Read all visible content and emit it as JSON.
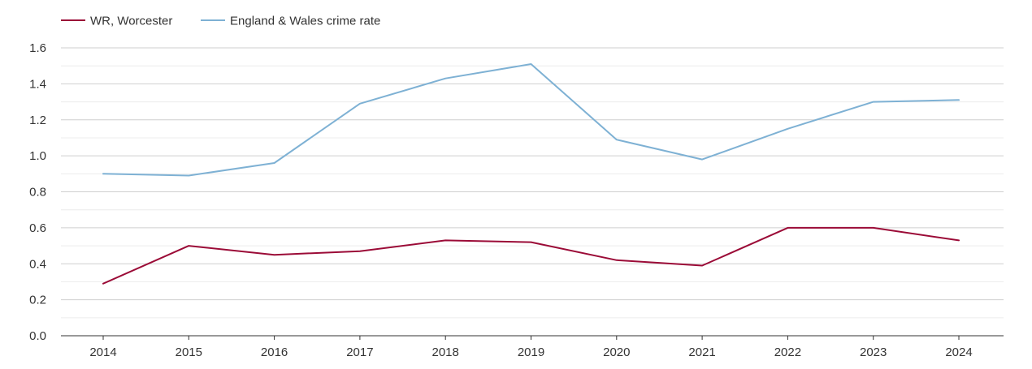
{
  "chart_data": {
    "type": "line",
    "title": "",
    "xlabel": "",
    "ylabel": "",
    "x": [
      "2014",
      "2015",
      "2016",
      "2017",
      "2018",
      "2019",
      "2020",
      "2021",
      "2022",
      "2023",
      "2024"
    ],
    "ylim": [
      0,
      1.6
    ],
    "yticks": [
      "0.0",
      "0.2",
      "0.4",
      "0.6",
      "0.8",
      "1.0",
      "1.2",
      "1.4",
      "1.6"
    ],
    "grid": true,
    "legend_position": "top-left",
    "series": [
      {
        "name": "WR, Worcester",
        "color": "#9b0b37",
        "values": [
          0.29,
          0.5,
          0.45,
          0.47,
          0.53,
          0.52,
          0.42,
          0.39,
          0.6,
          0.6,
          0.53
        ]
      },
      {
        "name": "England & Wales crime rate",
        "color": "#7eb1d4",
        "values": [
          0.9,
          0.89,
          0.96,
          1.29,
          1.43,
          1.51,
          1.09,
          0.98,
          1.15,
          1.3,
          1.31
        ]
      }
    ]
  }
}
